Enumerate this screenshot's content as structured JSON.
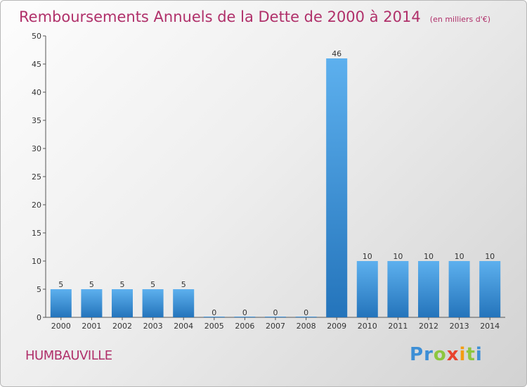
{
  "chart_data": {
    "type": "bar",
    "title": "Remboursements Annuels de la Dette de 2000 à 2014",
    "subtitle": "(en milliers d'€)",
    "categories": [
      "2000",
      "2001",
      "2002",
      "2003",
      "2004",
      "2005",
      "2006",
      "2007",
      "2008",
      "2009",
      "2010",
      "2011",
      "2012",
      "2013",
      "2014"
    ],
    "values": [
      5,
      5,
      5,
      5,
      5,
      0,
      0,
      0,
      0,
      46,
      10,
      10,
      10,
      10,
      10
    ],
    "ylim": [
      0,
      50
    ],
    "yticks": [
      0,
      5,
      10,
      15,
      20,
      25,
      30,
      35,
      40,
      45,
      50
    ],
    "grid": false,
    "bar_color": "#3d8fd6"
  },
  "footer": {
    "commune": "HUMBAUVILLE",
    "brand_letters": [
      {
        "ch": "P",
        "color": "#3d8fd6"
      },
      {
        "ch": "r",
        "color": "#3d8fd6"
      },
      {
        "ch": "o",
        "color": "#8dc63f"
      },
      {
        "ch": "x",
        "color": "#e8432e"
      },
      {
        "ch": "i",
        "color": "#f39c12"
      },
      {
        "ch": "t",
        "color": "#8dc63f"
      },
      {
        "ch": "i",
        "color": "#3d8fd6"
      }
    ]
  }
}
